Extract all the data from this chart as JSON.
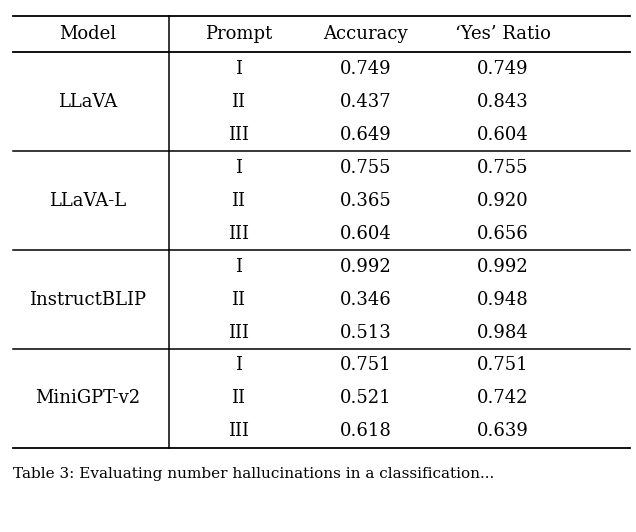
{
  "headers": [
    "Model",
    "Prompt",
    "Accuracy",
    "‘Yes’ Ratio"
  ],
  "rows": [
    [
      "LLaVA",
      "I",
      "0.749",
      "0.749"
    ],
    [
      "LLaVA",
      "II",
      "0.437",
      "0.843"
    ],
    [
      "LLaVA",
      "III",
      "0.649",
      "0.604"
    ],
    [
      "LLaVA-L",
      "I",
      "0.755",
      "0.755"
    ],
    [
      "LLaVA-L",
      "II",
      "0.365",
      "0.920"
    ],
    [
      "LLaVA-L",
      "III",
      "0.604",
      "0.656"
    ],
    [
      "InstructBLIP",
      "I",
      "0.992",
      "0.992"
    ],
    [
      "InstructBLIP",
      "II",
      "0.346",
      "0.948"
    ],
    [
      "InstructBLIP",
      "III",
      "0.513",
      "0.984"
    ],
    [
      "MiniGPT-v2",
      "I",
      "0.751",
      "0.751"
    ],
    [
      "MiniGPT-v2",
      "II",
      "0.521",
      "0.742"
    ],
    [
      "MiniGPT-v2",
      "III",
      "0.618",
      "0.639"
    ]
  ],
  "model_groups": [
    {
      "model": "LLaVA",
      "rows": [
        0,
        1,
        2
      ]
    },
    {
      "model": "LLaVA-L",
      "rows": [
        3,
        4,
        5
      ]
    },
    {
      "model": "InstructBLIP",
      "rows": [
        6,
        7,
        8
      ]
    },
    {
      "model": "MiniGPT-v2",
      "rows": [
        9,
        10,
        11
      ]
    }
  ],
  "bg_color": "#ffffff",
  "text_color": "#000000",
  "header_fontsize": 13,
  "cell_fontsize": 13,
  "caption": "Table 3: Evaluating number hallucinations in a classification...",
  "caption_fontsize": 11
}
